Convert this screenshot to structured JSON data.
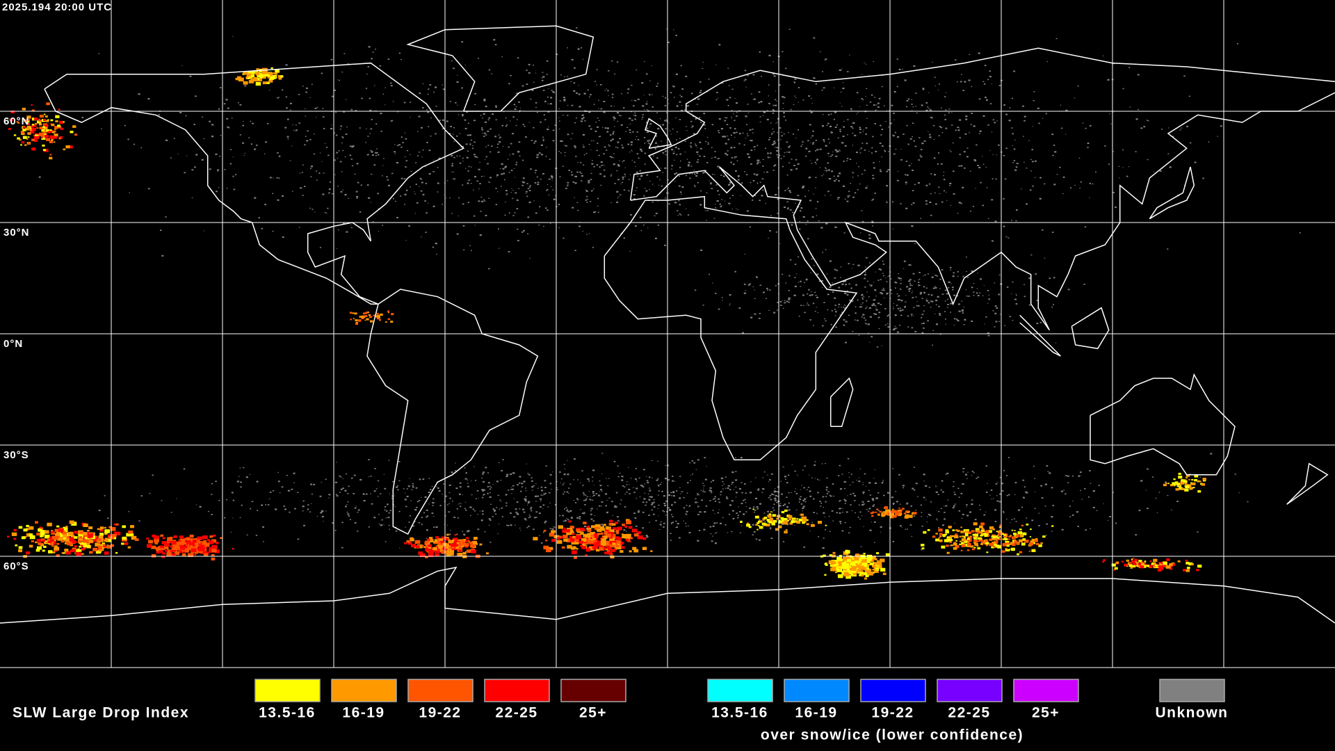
{
  "header": {
    "timestamp": "2025.194 20:00 UTC"
  },
  "map": {
    "lat_labels": [
      "60°N",
      "30°N",
      "0°N",
      "30°S",
      "60°S"
    ]
  },
  "legend": {
    "title": "SLW Large Drop Index",
    "items": [
      {
        "label": "13.5-16",
        "color": "#ffff00"
      },
      {
        "label": "16-19",
        "color": "#ff9900"
      },
      {
        "label": "19-22",
        "color": "#ff5500"
      },
      {
        "label": "22-25",
        "color": "#ff0000"
      },
      {
        "label": "25+",
        "color": "#660000"
      }
    ],
    "snow_items": [
      {
        "label": "13.5-16",
        "color": "#00ffff"
      },
      {
        "label": "16-19",
        "color": "#0088ff"
      },
      {
        "label": "19-22",
        "color": "#0000ff"
      },
      {
        "label": "22-25",
        "color": "#7700ff"
      },
      {
        "label": "25+",
        "color": "#cc00ff"
      }
    ],
    "snow_caption": "over snow/ice (lower confidence)",
    "unknown": {
      "label": "Unknown",
      "color": "#808080"
    }
  }
}
